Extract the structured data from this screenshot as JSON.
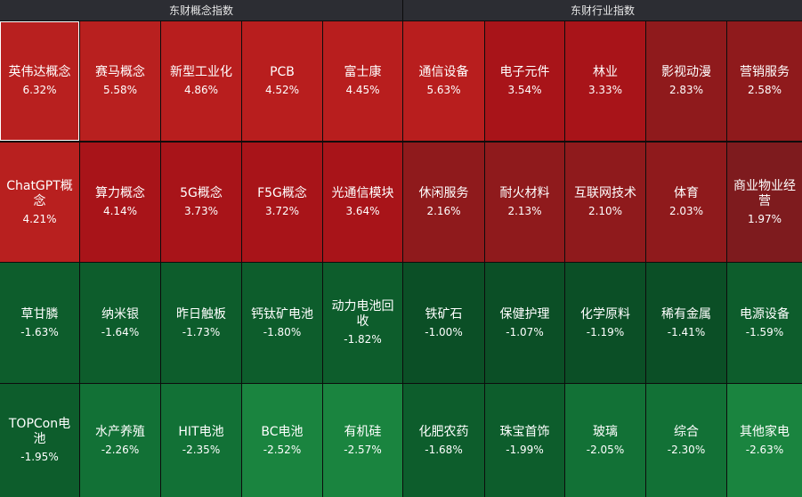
{
  "panels": [
    {
      "title": "东财概念指数",
      "rows": [
        [
          {
            "name": "英伟达概念",
            "change": "6.32%",
            "color": "#b8201f",
            "selected": true
          },
          {
            "name": "赛马概念",
            "change": "5.58%",
            "color": "#b8201f"
          },
          {
            "name": "新型工业化",
            "change": "4.86%",
            "color": "#b81e1e"
          },
          {
            "name": "PCB",
            "change": "4.52%",
            "color": "#b81e1e"
          },
          {
            "name": "富士康",
            "change": "4.45%",
            "color": "#b81e1e"
          }
        ],
        [
          {
            "name": "ChatGPT概念",
            "change": "4.21%",
            "color": "#b8201f"
          },
          {
            "name": "算力概念",
            "change": "4.14%",
            "color": "#a81419"
          },
          {
            "name": "5G概念",
            "change": "3.73%",
            "color": "#a81419"
          },
          {
            "name": "F5G概念",
            "change": "3.72%",
            "color": "#a81419"
          },
          {
            "name": "光通信模块",
            "change": "3.64%",
            "color": "#a81419"
          }
        ],
        [
          {
            "name": "草甘膦",
            "change": "-1.63%",
            "color": "#0d5d2c"
          },
          {
            "name": "纳米银",
            "change": "-1.64%",
            "color": "#0d5d2c"
          },
          {
            "name": "昨日触板",
            "change": "-1.73%",
            "color": "#0d5d2c"
          },
          {
            "name": "钙钛矿电池",
            "change": "-1.80%",
            "color": "#0d5d2c"
          },
          {
            "name": "动力电池回收",
            "change": "-1.82%",
            "color": "#0d5d2c"
          }
        ],
        [
          {
            "name": "TOPCon电池",
            "change": "-1.95%",
            "color": "#0d5d2c"
          },
          {
            "name": "水产养殖",
            "change": "-2.26%",
            "color": "#127136"
          },
          {
            "name": "HIT电池",
            "change": "-2.35%",
            "color": "#127136"
          },
          {
            "name": "BC电池",
            "change": "-2.52%",
            "color": "#1a843f"
          },
          {
            "name": "有机硅",
            "change": "-2.57%",
            "color": "#1a843f"
          }
        ]
      ]
    },
    {
      "title": "东财行业指数",
      "rows": [
        [
          {
            "name": "通信设备",
            "change": "5.63%",
            "color": "#b81e1e"
          },
          {
            "name": "电子元件",
            "change": "3.54%",
            "color": "#a81419"
          },
          {
            "name": "林业",
            "change": "3.33%",
            "color": "#a81419"
          },
          {
            "name": "影视动漫",
            "change": "2.83%",
            "color": "#8f1a1c"
          },
          {
            "name": "营销服务",
            "change": "2.58%",
            "color": "#8f1a1c"
          }
        ],
        [
          {
            "name": "休闲服务",
            "change": "2.16%",
            "color": "#8f1a1c"
          },
          {
            "name": "耐火材料",
            "change": "2.13%",
            "color": "#8f1a1c"
          },
          {
            "name": "互联网技术",
            "change": "2.10%",
            "color": "#8f1a1c"
          },
          {
            "name": "体育",
            "change": "2.03%",
            "color": "#8f1a1c"
          },
          {
            "name": "商业物业经营",
            "change": "1.97%",
            "color": "#7e1b1e"
          }
        ],
        [
          {
            "name": "铁矿石",
            "change": "-1.00%",
            "color": "#0b4f26"
          },
          {
            "name": "保健护理",
            "change": "-1.07%",
            "color": "#0b4f26"
          },
          {
            "name": "化学原料",
            "change": "-1.19%",
            "color": "#0b4f26"
          },
          {
            "name": "稀有金属",
            "change": "-1.41%",
            "color": "#0b4f26"
          },
          {
            "name": "电源设备",
            "change": "-1.59%",
            "color": "#0d5d2c"
          }
        ],
        [
          {
            "name": "化肥农药",
            "change": "-1.68%",
            "color": "#0d5d2c"
          },
          {
            "name": "珠宝首饰",
            "change": "-1.99%",
            "color": "#0d5d2c"
          },
          {
            "name": "玻璃",
            "change": "-2.05%",
            "color": "#127136"
          },
          {
            "name": "综合",
            "change": "-2.30%",
            "color": "#127136"
          },
          {
            "name": "其他家电",
            "change": "-2.63%",
            "color": "#1a843f"
          }
        ]
      ]
    }
  ]
}
